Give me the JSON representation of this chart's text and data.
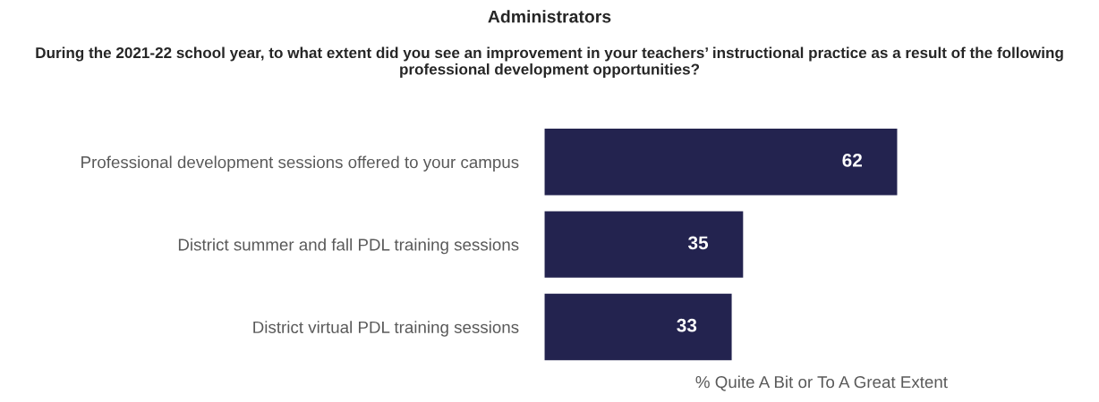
{
  "chart_data": {
    "type": "bar",
    "orientation": "horizontal",
    "title": "Administrators",
    "subtitle": "During the 2021-22 school year, to what extent did you see an improvement in your teachers’ instructional practice as a result of the following professional development opportunities?",
    "categories": [
      "Professional development sessions offered to your campus",
      "District summer and fall PDL training sessions",
      "District virtual PDL training sessions"
    ],
    "values": [
      62,
      35,
      33
    ],
    "color": "#23234f",
    "xlabel": "% Quite A Bit or To A Great Extent",
    "data_labels": true,
    "tick_labels": "y",
    "grid": false,
    "legend": false
  }
}
